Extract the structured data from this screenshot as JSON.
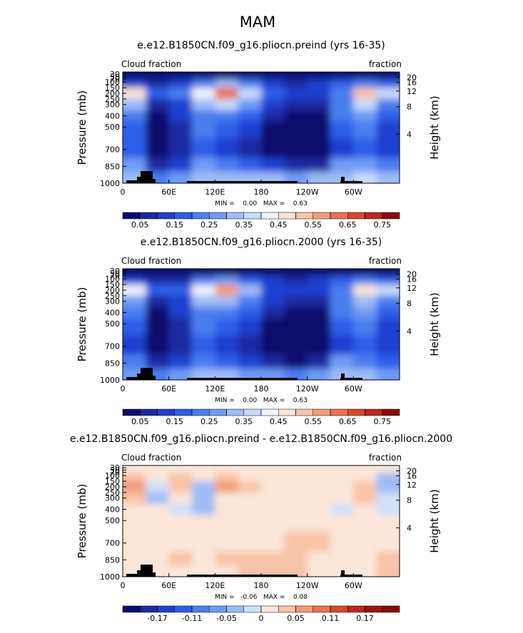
{
  "page_title": "MAM",
  "chart_data": [
    {
      "type": "contour",
      "title": "e.e12.B1850CN.f09_g16.pliocn.preind (yrs 16-35)",
      "left_label": "Cloud fraction",
      "right_label": "fraction",
      "ylabel": "Pressure (mb)",
      "y2label": "Height (km)",
      "stats": "MIN =    0.00   MAX =    0.63",
      "xlim": [
        0,
        360
      ],
      "ylim": [
        1000,
        10
      ],
      "xticks": [
        0,
        {
          "value": 60,
          "label": "60E"
        },
        {
          "value": 120,
          "label": "120E"
        },
        180,
        {
          "value": 240,
          "label": "120W"
        },
        {
          "value": 300,
          "label": "60W"
        }
      ],
      "yticks": [
        30,
        50,
        70,
        100,
        150,
        200,
        250,
        300,
        400,
        500,
        700,
        850,
        1000
      ],
      "y2ticks": [
        4,
        8,
        12,
        16,
        20
      ],
      "x": [
        15,
        45,
        75,
        105,
        135,
        165,
        195,
        225,
        255,
        285,
        315,
        345
      ],
      "y": [
        50,
        100,
        200,
        300,
        400,
        500,
        700,
        850,
        950
      ],
      "z": [
        [
          0.02,
          0.02,
          0.02,
          0.02,
          0.02,
          0.02,
          0.02,
          0.02,
          0.02,
          0.02,
          0.02,
          0.02
        ],
        [
          0.12,
          0.08,
          0.1,
          0.2,
          0.3,
          0.2,
          0.1,
          0.08,
          0.1,
          0.15,
          0.2,
          0.15
        ],
        [
          0.45,
          0.15,
          0.2,
          0.4,
          0.6,
          0.35,
          0.15,
          0.1,
          0.12,
          0.2,
          0.5,
          0.35
        ],
        [
          0.3,
          0.05,
          0.12,
          0.3,
          0.35,
          0.25,
          0.1,
          0.07,
          0.08,
          0.2,
          0.35,
          0.2
        ],
        [
          0.2,
          0.03,
          0.1,
          0.22,
          0.22,
          0.18,
          0.06,
          0.03,
          0.04,
          0.2,
          0.25,
          0.15
        ],
        [
          0.15,
          0.03,
          0.08,
          0.2,
          0.18,
          0.12,
          0.04,
          0.02,
          0.03,
          0.15,
          0.2,
          0.12
        ],
        [
          0.15,
          0.03,
          0.05,
          0.15,
          0.1,
          0.08,
          0.04,
          0.02,
          0.03,
          0.1,
          0.18,
          0.1
        ],
        [
          0.25,
          0.05,
          0.12,
          0.25,
          0.2,
          0.15,
          0.1,
          0.05,
          0.08,
          0.25,
          0.25,
          0.2
        ],
        [
          0.3,
          0.2,
          0.25,
          0.3,
          0.3,
          0.3,
          0.3,
          0.25,
          0.3,
          0.3,
          0.35,
          0.3
        ]
      ],
      "colorbar": {
        "levels": [
          0.05,
          0.1,
          0.15,
          0.2,
          0.25,
          0.3,
          0.35,
          0.4,
          0.45,
          0.5,
          0.55,
          0.6,
          0.65,
          0.7,
          0.75
        ],
        "ticks": [
          0.05,
          0.15,
          0.25,
          0.35,
          0.45,
          0.55,
          0.65,
          0.75
        ],
        "colors": [
          "#0b0a6e",
          "#1a2aa0",
          "#1f3fcf",
          "#2d5ee8",
          "#4a7ef0",
          "#6e9cf5",
          "#9ebcf7",
          "#c8dafa",
          "#eef2fc",
          "#fbe3d4",
          "#f8c3a6",
          "#f29c7a",
          "#ea7151",
          "#d9472a",
          "#bd261a",
          "#8b0a0a"
        ]
      }
    },
    {
      "type": "contour",
      "title": "e.e12.B1850CN.f09_g16.pliocn.2000 (yrs 16-35)",
      "left_label": "Cloud fraction",
      "right_label": "fraction",
      "ylabel": "Pressure (mb)",
      "y2label": "Height (km)",
      "stats": "MIN =    0.00   MAX =    0.63",
      "xlim": [
        0,
        360
      ],
      "ylim": [
        1000,
        10
      ],
      "xticks": [
        0,
        {
          "value": 60,
          "label": "60E"
        },
        {
          "value": 120,
          "label": "120E"
        },
        180,
        {
          "value": 240,
          "label": "120W"
        },
        {
          "value": 300,
          "label": "60W"
        }
      ],
      "yticks": [
        30,
        50,
        70,
        100,
        150,
        200,
        250,
        300,
        400,
        500,
        700,
        850,
        1000
      ],
      "y2ticks": [
        4,
        8,
        12,
        16,
        20
      ],
      "x": [
        15,
        45,
        75,
        105,
        135,
        165,
        195,
        225,
        255,
        285,
        315,
        345
      ],
      "y": [
        50,
        100,
        200,
        300,
        400,
        500,
        700,
        850,
        950
      ],
      "z": [
        [
          0.02,
          0.02,
          0.02,
          0.02,
          0.02,
          0.02,
          0.02,
          0.02,
          0.02,
          0.02,
          0.02,
          0.02
        ],
        [
          0.1,
          0.08,
          0.09,
          0.2,
          0.28,
          0.18,
          0.1,
          0.08,
          0.1,
          0.15,
          0.2,
          0.17
        ],
        [
          0.4,
          0.16,
          0.18,
          0.42,
          0.58,
          0.33,
          0.14,
          0.1,
          0.11,
          0.2,
          0.48,
          0.38
        ],
        [
          0.28,
          0.07,
          0.12,
          0.34,
          0.34,
          0.24,
          0.1,
          0.06,
          0.07,
          0.2,
          0.34,
          0.22
        ],
        [
          0.2,
          0.03,
          0.1,
          0.24,
          0.22,
          0.18,
          0.06,
          0.02,
          0.03,
          0.2,
          0.25,
          0.16
        ],
        [
          0.15,
          0.03,
          0.08,
          0.2,
          0.18,
          0.12,
          0.04,
          0.02,
          0.02,
          0.15,
          0.2,
          0.12
        ],
        [
          0.14,
          0.03,
          0.05,
          0.15,
          0.1,
          0.08,
          0.04,
          0.02,
          0.02,
          0.1,
          0.17,
          0.1
        ],
        [
          0.24,
          0.05,
          0.11,
          0.24,
          0.18,
          0.14,
          0.08,
          0.03,
          0.06,
          0.25,
          0.24,
          0.18
        ],
        [
          0.29,
          0.2,
          0.25,
          0.3,
          0.3,
          0.28,
          0.28,
          0.23,
          0.29,
          0.3,
          0.34,
          0.28
        ]
      ],
      "colorbar": {
        "levels": [
          0.05,
          0.1,
          0.15,
          0.2,
          0.25,
          0.3,
          0.35,
          0.4,
          0.45,
          0.5,
          0.55,
          0.6,
          0.65,
          0.7,
          0.75
        ],
        "ticks": [
          0.05,
          0.15,
          0.25,
          0.35,
          0.45,
          0.55,
          0.65,
          0.75
        ],
        "colors": [
          "#0b0a6e",
          "#1a2aa0",
          "#1f3fcf",
          "#2d5ee8",
          "#4a7ef0",
          "#6e9cf5",
          "#9ebcf7",
          "#c8dafa",
          "#eef2fc",
          "#fbe3d4",
          "#f8c3a6",
          "#f29c7a",
          "#ea7151",
          "#d9472a",
          "#bd261a",
          "#8b0a0a"
        ]
      }
    },
    {
      "type": "contour",
      "title": "e.e12.B1850CN.f09_g16.pliocn.preind - e.e12.B1850CN.f09_g16.pliocn.2000",
      "left_label": "Cloud fraction",
      "right_label": "fraction",
      "ylabel": "Pressure (mb)",
      "y2label": "Height (km)",
      "stats": "MIN =   -0.06   MAX =    0.08",
      "xlim": [
        0,
        360
      ],
      "ylim": [
        1000,
        10
      ],
      "xticks": [
        0,
        {
          "value": 60,
          "label": "60E"
        },
        {
          "value": 120,
          "label": "120E"
        },
        180,
        {
          "value": 240,
          "label": "120W"
        },
        {
          "value": 300,
          "label": "60W"
        }
      ],
      "yticks": [
        30,
        50,
        70,
        100,
        150,
        200,
        250,
        300,
        400,
        500,
        700,
        850,
        1000
      ],
      "y2ticks": [
        4,
        8,
        12,
        16,
        20
      ],
      "x": [
        15,
        45,
        75,
        105,
        135,
        165,
        195,
        225,
        255,
        285,
        315,
        345
      ],
      "y": [
        50,
        100,
        200,
        300,
        400,
        500,
        700,
        850,
        950
      ],
      "z": [
        [
          0,
          0,
          0,
          0,
          0,
          0,
          0,
          0,
          0,
          0,
          0,
          0
        ],
        [
          0.03,
          0,
          0.02,
          0.01,
          0.02,
          0.01,
          0,
          0,
          0.01,
          0,
          0,
          -0.03
        ],
        [
          0.05,
          -0.02,
          0.03,
          -0.04,
          0.05,
          0.02,
          0.01,
          0.01,
          0.01,
          0.01,
          0.03,
          -0.04
        ],
        [
          0.02,
          -0.03,
          0,
          -0.05,
          0.01,
          0.01,
          0.01,
          0.01,
          0.01,
          0,
          0.02,
          -0.02
        ],
        [
          0,
          0.01,
          -0.01,
          -0.03,
          0,
          0.01,
          0.01,
          0.01,
          0.01,
          -0.01,
          0.01,
          -0.02
        ],
        [
          0.01,
          0.01,
          0,
          0,
          0,
          0.01,
          0.01,
          0.01,
          0.01,
          0,
          0.01,
          0.01
        ],
        [
          0.01,
          0.01,
          0,
          0.01,
          0.01,
          0.01,
          0.01,
          0.02,
          0.02,
          0,
          0.01,
          0.01
        ],
        [
          0.01,
          0.01,
          0.02,
          0.01,
          0.02,
          0.02,
          0.03,
          0.03,
          0.01,
          0,
          0.01,
          0.02
        ],
        [
          0.01,
          0.01,
          0,
          0.01,
          0.01,
          0.02,
          0.02,
          0.02,
          0.01,
          0.01,
          0.01,
          0.02
        ]
      ],
      "colorbar": {
        "levels": [
          -0.2,
          -0.17,
          -0.14,
          -0.11,
          -0.08,
          -0.05,
          -0.02,
          0,
          0.02,
          0.05,
          0.08,
          0.11,
          0.14,
          0.17,
          0.2
        ],
        "ticks": [
          -0.17,
          -0.11,
          -0.05,
          0,
          0.05,
          0.11,
          0.17
        ],
        "colors": [
          "#0b0a6e",
          "#1a2aa0",
          "#1f3fcf",
          "#2d5ee8",
          "#4a7ef0",
          "#6e9cf5",
          "#9ebcf7",
          "#cfe0fb",
          "#fbe6d8",
          "#f8c3a6",
          "#f29c7a",
          "#ea7151",
          "#d9472a",
          "#bd261a",
          "#a01212",
          "#8b0a0a"
        ]
      }
    }
  ]
}
